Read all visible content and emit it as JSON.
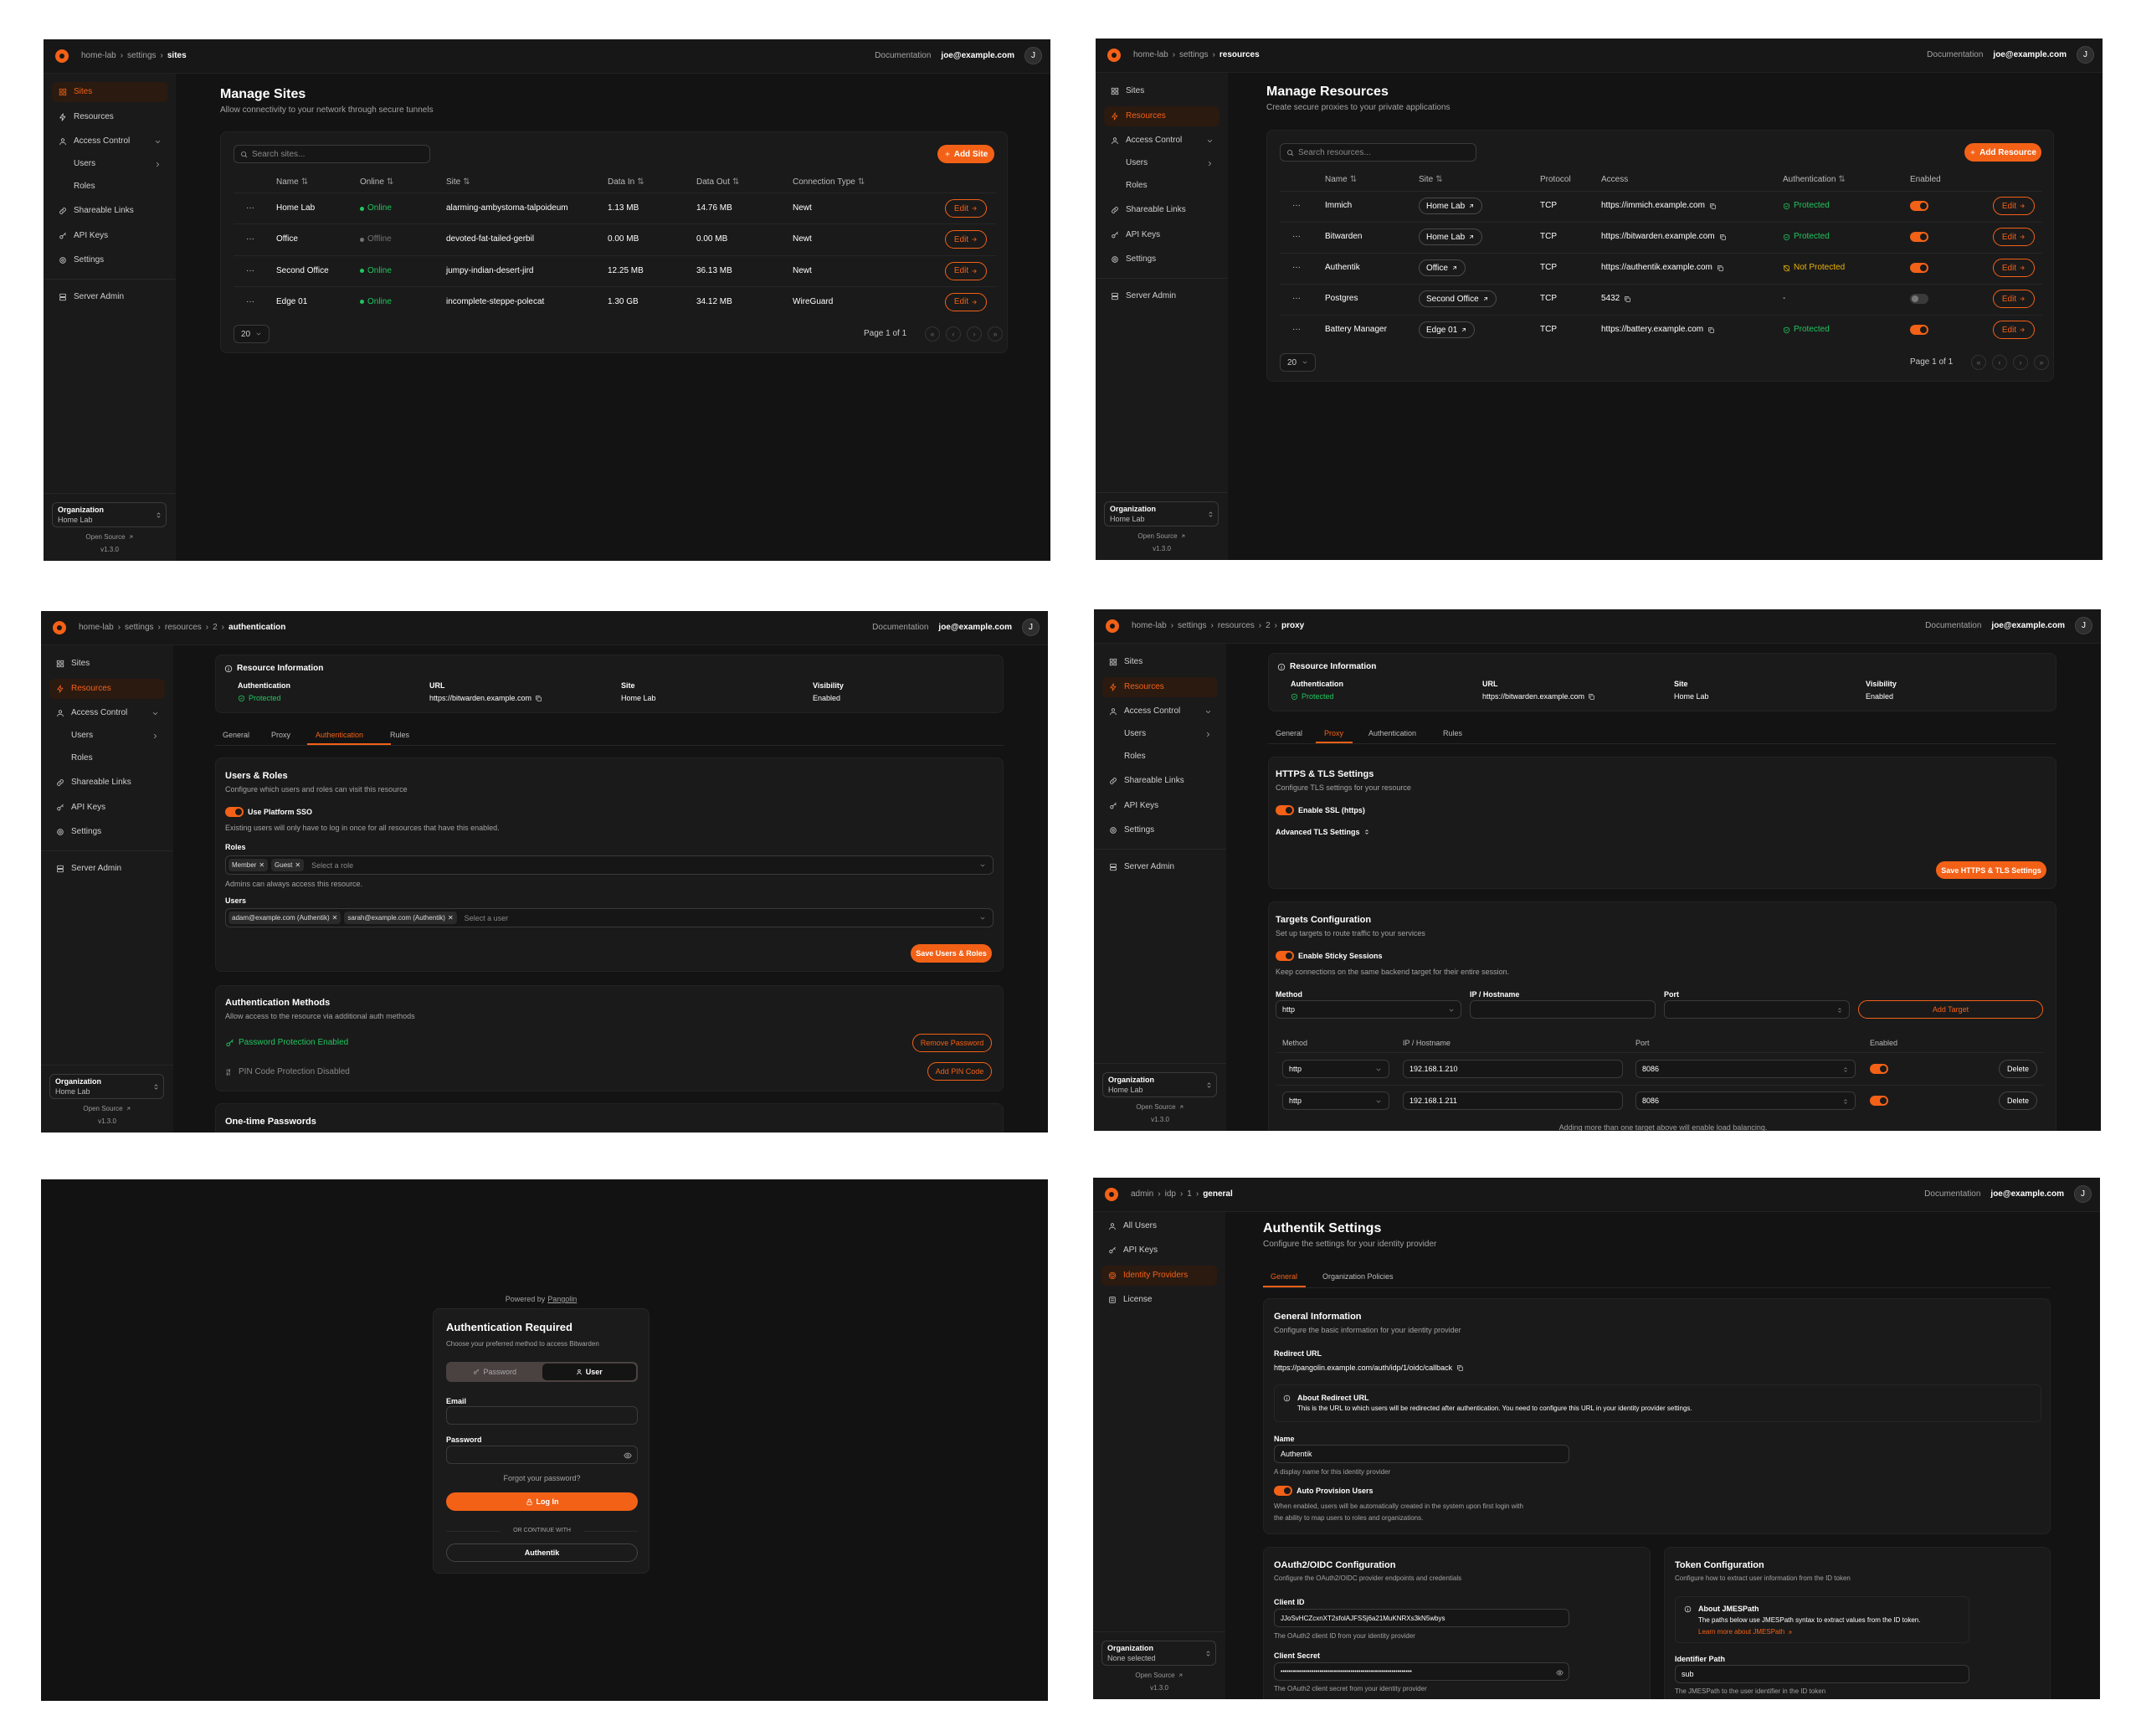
{
  "colors": {
    "accent": "#f36117",
    "online": "#22c55e",
    "offline": "#737373",
    "protected": "#22c55e",
    "not_protected": "#eab308",
    "background": "#131313",
    "card": "#1a1a1a"
  },
  "header": {
    "documentation": "Documentation",
    "user_email": "joe@example.com",
    "avatar_initial": "J"
  },
  "sidebar_footer": {
    "org_label": "Organization",
    "open_source": "Open Source",
    "version": "v1.3.0"
  },
  "org_nav": [
    {
      "label": "Sites",
      "icon": "sites-icon"
    },
    {
      "label": "Resources",
      "icon": "resources-icon"
    },
    {
      "label": "Access Control",
      "icon": "users-icon",
      "chevron": "down"
    },
    {
      "label": "Users",
      "sub": true,
      "chevron": "right"
    },
    {
      "label": "Roles",
      "sub": true
    },
    {
      "label": "Shareable Links",
      "icon": "link-icon"
    },
    {
      "label": "API Keys",
      "icon": "key-icon"
    },
    {
      "label": "Settings",
      "icon": "gear-icon"
    }
  ],
  "org_nav_server": {
    "label": "Server Admin",
    "icon": "server-icon"
  },
  "admin_nav": [
    {
      "label": "All Users",
      "icon": "users-icon"
    },
    {
      "label": "API Keys",
      "icon": "key-icon"
    },
    {
      "label": "Identity Providers",
      "icon": "fingerprint-icon"
    },
    {
      "label": "License",
      "icon": "license-icon"
    }
  ],
  "screens": {
    "sites": {
      "breadcrumb": [
        "home-lab",
        "settings",
        "sites"
      ],
      "active_nav": 0,
      "org_value": "Home Lab",
      "title": "Manage Sites",
      "subtitle": "Allow connectivity to your network through secure tunnels",
      "search_placeholder": "Search sites...",
      "add_button": "Add Site",
      "columns": [
        "Name",
        "Online",
        "Site",
        "Data In",
        "Data Out",
        "Connection Type"
      ],
      "rows": [
        {
          "name": "Home Lab",
          "status": "Online",
          "online": true,
          "site": "alarming-ambystoma-talpoideum",
          "data_in": "1.13 MB",
          "data_out": "14.76 MB",
          "connection": "Newt"
        },
        {
          "name": "Office",
          "status": "Offline",
          "online": false,
          "site": "devoted-fat-tailed-gerbil",
          "data_in": "0.00 MB",
          "data_out": "0.00 MB",
          "connection": "Newt"
        },
        {
          "name": "Second Office",
          "status": "Online",
          "online": true,
          "site": "jumpy-indian-desert-jird",
          "data_in": "12.25 MB",
          "data_out": "36.13 MB",
          "connection": "Newt"
        },
        {
          "name": "Edge 01",
          "status": "Online",
          "online": true,
          "site": "incomplete-steppe-polecat",
          "data_in": "1.30 GB",
          "data_out": "34.12 MB",
          "connection": "WireGuard"
        }
      ],
      "edit_label": "Edit",
      "page_size": "20",
      "page_info": "Page 1 of 1"
    },
    "resources": {
      "breadcrumb": [
        "home-lab",
        "settings",
        "resources"
      ],
      "active_nav": 1,
      "org_value": "Home Lab",
      "title": "Manage Resources",
      "subtitle": "Create secure proxies to your private applications",
      "search_placeholder": "Search resources...",
      "add_button": "Add Resource",
      "columns": [
        "Name",
        "Site",
        "Protocol",
        "Access",
        "Authentication",
        "Enabled"
      ],
      "rows": [
        {
          "name": "Immich",
          "site": "Home Lab",
          "protocol": "TCP",
          "access": "https://immich.example.com",
          "auth": "Protected",
          "auth_state": "protected",
          "enabled": true
        },
        {
          "name": "Bitwarden",
          "site": "Home Lab",
          "protocol": "TCP",
          "access": "https://bitwarden.example.com",
          "auth": "Protected",
          "auth_state": "protected",
          "enabled": true
        },
        {
          "name": "Authentik",
          "site": "Office",
          "protocol": "TCP",
          "access": "https://authentik.example.com",
          "auth": "Not Protected",
          "auth_state": "not_protected",
          "enabled": true
        },
        {
          "name": "Postgres",
          "site": "Second Office",
          "protocol": "TCP",
          "access": "5432",
          "auth": "-",
          "auth_state": "none",
          "enabled": false
        },
        {
          "name": "Battery Manager",
          "site": "Edge 01",
          "protocol": "TCP",
          "access": "https://battery.example.com",
          "auth": "Protected",
          "auth_state": "protected",
          "enabled": true
        }
      ],
      "edit_label": "Edit",
      "page_size": "20",
      "page_info": "Page 1 of 1"
    },
    "resource_auth": {
      "breadcrumb": [
        "home-lab",
        "settings",
        "resources",
        "2",
        "authentication"
      ],
      "active_nav": 1,
      "org_value": "Home Lab",
      "info": {
        "title": "Resource Information",
        "fields": [
          {
            "label": "Authentication",
            "value": "Protected"
          },
          {
            "label": "URL",
            "value": "https://bitwarden.example.com"
          },
          {
            "label": "Site",
            "value": "Home Lab"
          },
          {
            "label": "Visibility",
            "value": "Enabled"
          }
        ]
      },
      "tabs": [
        "General",
        "Proxy",
        "Authentication",
        "Rules"
      ],
      "active_tab": 2,
      "users_roles": {
        "title": "Users & Roles",
        "subtitle": "Configure which users and roles can visit this resource",
        "sso_label": "Use Platform SSO",
        "sso_enabled": true,
        "sso_help": "Existing users will only have to log in once for all resources that have this enabled.",
        "roles_label": "Roles",
        "roles": [
          "Member",
          "Guest"
        ],
        "roles_placeholder": "Select a role",
        "roles_help": "Admins can always access this resource.",
        "users_label": "Users",
        "users": [
          "adam@example.com (Authentik)",
          "sarah@example.com (Authentik)"
        ],
        "users_placeholder": "Select a user",
        "save_button": "Save Users & Roles"
      },
      "auth_methods": {
        "title": "Authentication Methods",
        "subtitle": "Allow access to the resource via additional auth methods",
        "password_status": "Password Protection Enabled",
        "remove_password": "Remove Password",
        "pin_status": "PIN Code Protection Disabled",
        "add_pin": "Add PIN Code"
      },
      "otp_title": "One-time Passwords"
    },
    "resource_proxy": {
      "breadcrumb": [
        "home-lab",
        "settings",
        "resources",
        "2",
        "proxy"
      ],
      "active_nav": 1,
      "org_value": "Home Lab",
      "info": {
        "title": "Resource Information",
        "fields": [
          {
            "label": "Authentication",
            "value": "Protected"
          },
          {
            "label": "URL",
            "value": "https://bitwarden.example.com"
          },
          {
            "label": "Site",
            "value": "Home Lab"
          },
          {
            "label": "Visibility",
            "value": "Enabled"
          }
        ]
      },
      "tabs": [
        "General",
        "Proxy",
        "Authentication",
        "Rules"
      ],
      "active_tab": 1,
      "tls": {
        "title": "HTTPS & TLS Settings",
        "subtitle": "Configure TLS settings for your resource",
        "ssl_label": "Enable SSL (https)",
        "ssl_enabled": true,
        "advanced": "Advanced TLS Settings",
        "save_button": "Save HTTPS & TLS Settings"
      },
      "targets": {
        "title": "Targets Configuration",
        "subtitle": "Set up targets to route traffic to your services",
        "sticky_label": "Enable Sticky Sessions",
        "sticky_enabled": true,
        "sticky_help": "Keep connections on the same backend target for their entire session.",
        "form_labels": [
          "Method",
          "IP / Hostname",
          "Port"
        ],
        "form_method": "http",
        "add_target": "Add Target",
        "columns": [
          "Method",
          "IP / Hostname",
          "Port",
          "Enabled"
        ],
        "rows": [
          {
            "method": "http",
            "host": "192.168.1.210",
            "port": "8086",
            "enabled": true
          },
          {
            "method": "http",
            "host": "192.168.1.211",
            "port": "8086",
            "enabled": true
          }
        ],
        "delete_label": "Delete",
        "footer_note": "Adding more than one target above will enable load balancing."
      }
    },
    "login": {
      "powered_by": "Powered by",
      "powered_link": "Pangolin",
      "title": "Authentication Required",
      "subtitle": "Choose your preferred method to access Bitwarden",
      "tabs": [
        "Password",
        "User"
      ],
      "active_tab": 1,
      "email_label": "Email",
      "password_label": "Password",
      "forgot": "Forgot your password?",
      "login_button": "Log In",
      "divider": "OR CONTINUE WITH",
      "sso_button": "Authentik"
    },
    "idp_general": {
      "breadcrumb": [
        "admin",
        "idp",
        "1",
        "general"
      ],
      "active_nav": 2,
      "org_value": "None selected",
      "title": "Authentik Settings",
      "subtitle": "Configure the settings for your identity provider",
      "tabs": [
        "General",
        "Organization Policies"
      ],
      "active_tab": 0,
      "general": {
        "title": "General Information",
        "subtitle": "Configure the basic information for your identity provider",
        "redirect_label": "Redirect URL",
        "redirect_url": "https://pangolin.example.com/auth/idp/1/oidc/callback",
        "about_title": "About Redirect URL",
        "about_text": "This is the URL to which users will be redirected after authentication. You need to configure this URL in your identity provider settings.",
        "name_label": "Name",
        "name_value": "Authentik",
        "name_help": "A display name for this identity provider",
        "auto_label": "Auto Provision Users",
        "auto_enabled": true,
        "auto_help_1": "When enabled, users will be automatically created in the system upon first login with",
        "auto_help_2": "the ability to map users to roles and organizations."
      },
      "oauth": {
        "title": "OAuth2/OIDC Configuration",
        "subtitle": "Configure the OAuth2/OIDC provider endpoints and credentials",
        "client_id_label": "Client ID",
        "client_id": "JJoSvHCZcxnXT2sfolAJFSSj6a21MuKNRXs3kN5wbys",
        "client_id_help": "The OAuth2 client ID from your identity provider",
        "secret_label": "Client Secret",
        "secret_value": "••••••••••••••••••••••••••••••••••••••••••••••••••••••••••••••••",
        "secret_help": "The OAuth2 client secret from your identity provider"
      },
      "token": {
        "title": "Token Configuration",
        "subtitle": "Configure how to extract user information from the ID token",
        "about_title": "About JMESPath",
        "about_text": "The paths below use JMESPath syntax to extract values from the ID token.",
        "about_link": "Learn more about JMESPath",
        "identifier_label": "Identifier Path",
        "identifier_value": "sub",
        "identifier_help": "The JMESPath to the user identifier in the ID token"
      }
    }
  }
}
